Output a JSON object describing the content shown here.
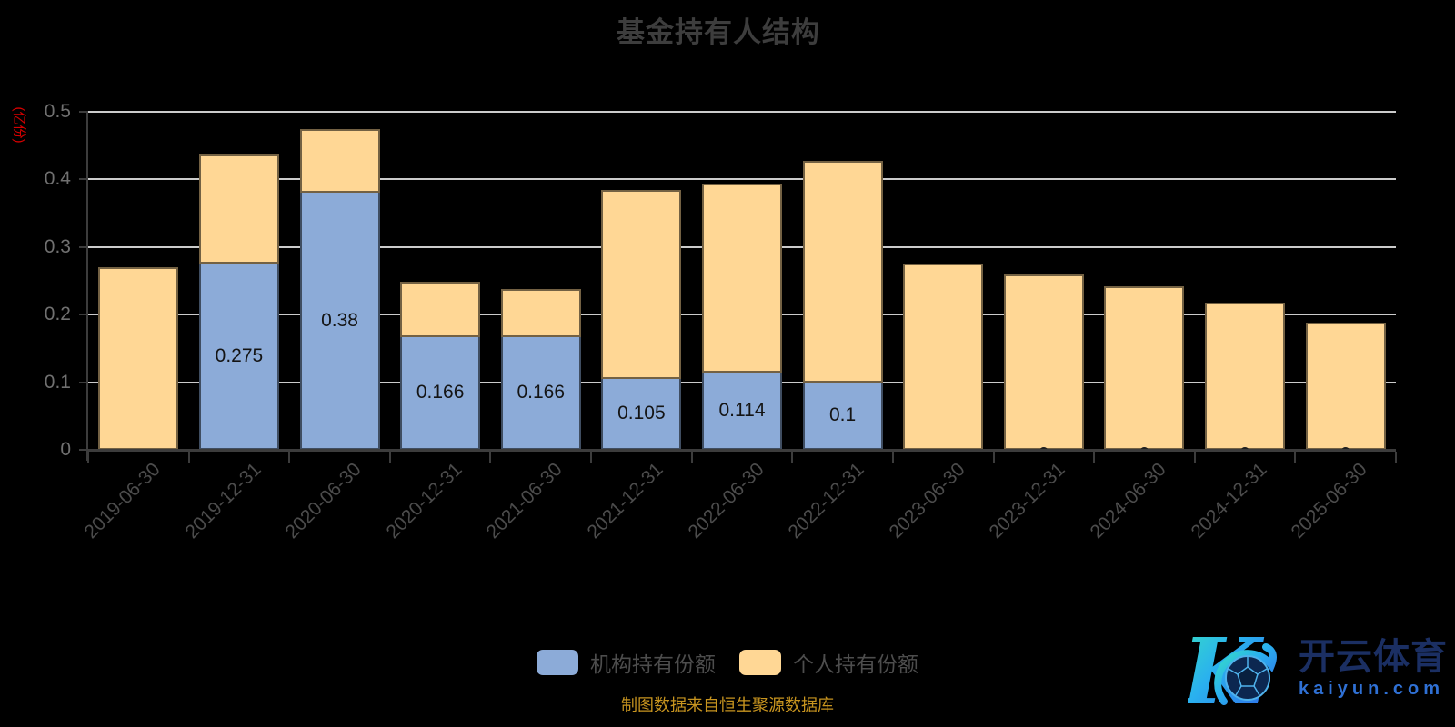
{
  "title": "基金持有人结构",
  "y_axis": {
    "name": "(亿份)",
    "name_color": "#d60000",
    "tick_labels": [
      "0",
      "0.1",
      "0.2",
      "0.3",
      "0.4",
      "0.5"
    ]
  },
  "legend": {
    "items": [
      {
        "label": "机构持有份额",
        "color": "#8cabd8"
      },
      {
        "label": "个人持有份额",
        "color": "#ffd795"
      }
    ]
  },
  "caption": "制图数据来自恒生聚源数据库",
  "watermark": {
    "brand": "开云体育",
    "domain": "kaiyun.com",
    "logo_letter": "K"
  },
  "chart_data": {
    "type": "bar",
    "stacked": true,
    "title": "基金持有人结构",
    "ylabel": "(亿份)",
    "ylim": [
      0,
      0.5
    ],
    "y_tick_step": 0.1,
    "grid": true,
    "legend_position": "bottom",
    "categories": [
      "2019-06-30",
      "2019-12-31",
      "2020-06-30",
      "2020-12-31",
      "2021-06-30",
      "2021-12-31",
      "2022-06-30",
      "2022-12-31",
      "2023-06-30",
      "2023-12-31",
      "2024-06-30",
      "2024-12-31",
      "2025-06-30"
    ],
    "series": [
      {
        "name": "机构持有份额",
        "color": "#8cabd8",
        "values": [
          0,
          0.275,
          0.38,
          0.166,
          0.166,
          0.105,
          0.114,
          0.1,
          0,
          0,
          0,
          0,
          0
        ],
        "data_labels": [
          null,
          "0.275",
          "0.38",
          "0.166",
          "0.166",
          "0.105",
          "0.114",
          "0.1",
          null,
          "0",
          "0",
          "0",
          "0"
        ]
      },
      {
        "name": "个人持有份额",
        "color": "#ffd795",
        "values": [
          0.27,
          0.162,
          0.095,
          0.083,
          0.072,
          0.28,
          0.28,
          0.328,
          0.276,
          0.259,
          0.242,
          0.218,
          0.188
        ]
      }
    ]
  }
}
